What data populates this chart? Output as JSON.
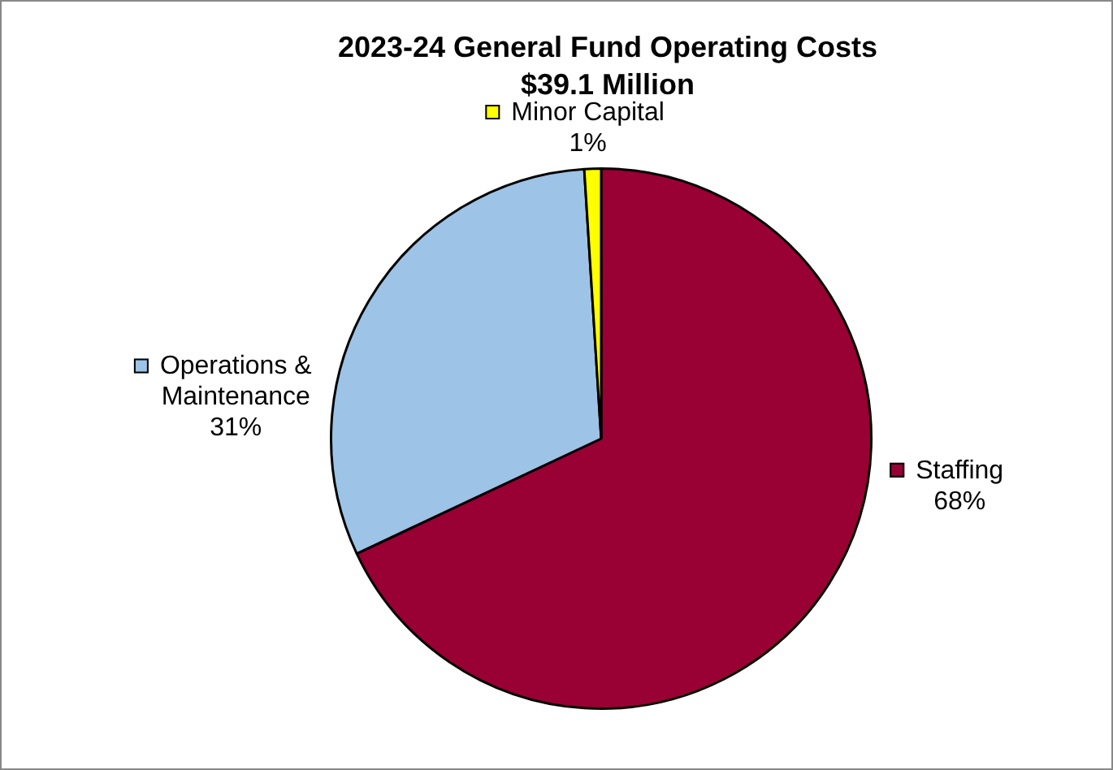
{
  "chart_data": {
    "type": "pie",
    "title": "2023-24 General Fund Operating Costs",
    "subtitle": "$39.1 Million",
    "categories": [
      "Staffing",
      "Operations & Maintenance",
      "Minor Capital"
    ],
    "values": [
      68,
      31,
      1
    ],
    "value_labels": [
      "68%",
      "31%",
      "1%"
    ],
    "colors": [
      "#990033",
      "#9dc3e6",
      "#ffff00"
    ],
    "legend": "top left"
  }
}
